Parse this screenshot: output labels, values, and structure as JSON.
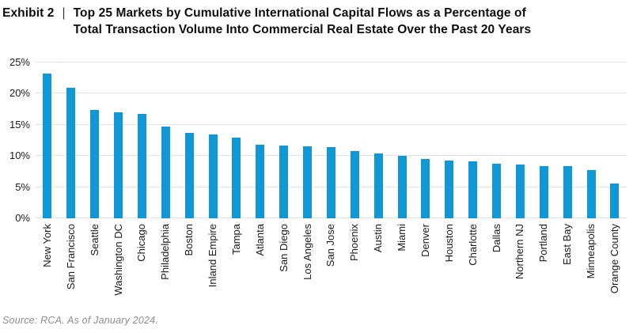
{
  "header": {
    "exhibit_label": "Exhibit 2",
    "divider": "|",
    "title_line1": "Top 25 Markets by Cumulative International Capital Flows as a Percentage of",
    "title_line2": "Total Transaction Volume Into Commercial Real Estate Over the Past 20 Years"
  },
  "source_note": "Source: RCA. As of January 2024.",
  "colors": {
    "background": "#ffffff",
    "bar": "#1098d6",
    "gridline": "#e3e3e3",
    "title_text": "#0d0d0d",
    "axis_text": "#1a1a1a",
    "source_text": "#8d8d8d"
  },
  "chart_data": {
    "type": "bar",
    "title": "Exhibit 2 | Top 25 Markets by Cumulative International Capital Flows as a Percentage of Total Transaction Volume Into Commercial Real Estate Over the Past 20 Years",
    "categories": [
      "New York",
      "San Francisco",
      "Seattle",
      "Washington DC",
      "Chicago",
      "Philadelphia",
      "Boston",
      "Inland Empire",
      "Tampa",
      "Atlanta",
      "San Diego",
      "Los Angeles",
      "San Jose",
      "Phoenix",
      "Austin",
      "Miami",
      "Denver",
      "Houston",
      "Charlotte",
      "Dallas",
      "Northern NJ",
      "Portland",
      "East Bay",
      "Minneapolis",
      "Orange County"
    ],
    "values": [
      23.2,
      20.9,
      17.4,
      17.0,
      16.8,
      14.7,
      13.7,
      13.5,
      13.0,
      11.8,
      11.7,
      11.6,
      11.4,
      10.8,
      10.4,
      10.0,
      9.5,
      9.3,
      9.1,
      8.7,
      8.6,
      8.4,
      8.4,
      7.8,
      5.6
    ],
    "units": "percent of total transaction volume",
    "xlabel": "",
    "ylabel": "",
    "ylim": [
      0,
      25
    ],
    "yticks": [
      0,
      5,
      10,
      15,
      20,
      25
    ],
    "ytick_labels": [
      "0%",
      "5%",
      "10%",
      "15%",
      "20%",
      "25%"
    ],
    "grid": "horizontal",
    "legend": "none",
    "bar_color": "#1098d6",
    "source": "Source: RCA. As of January 2024."
  }
}
